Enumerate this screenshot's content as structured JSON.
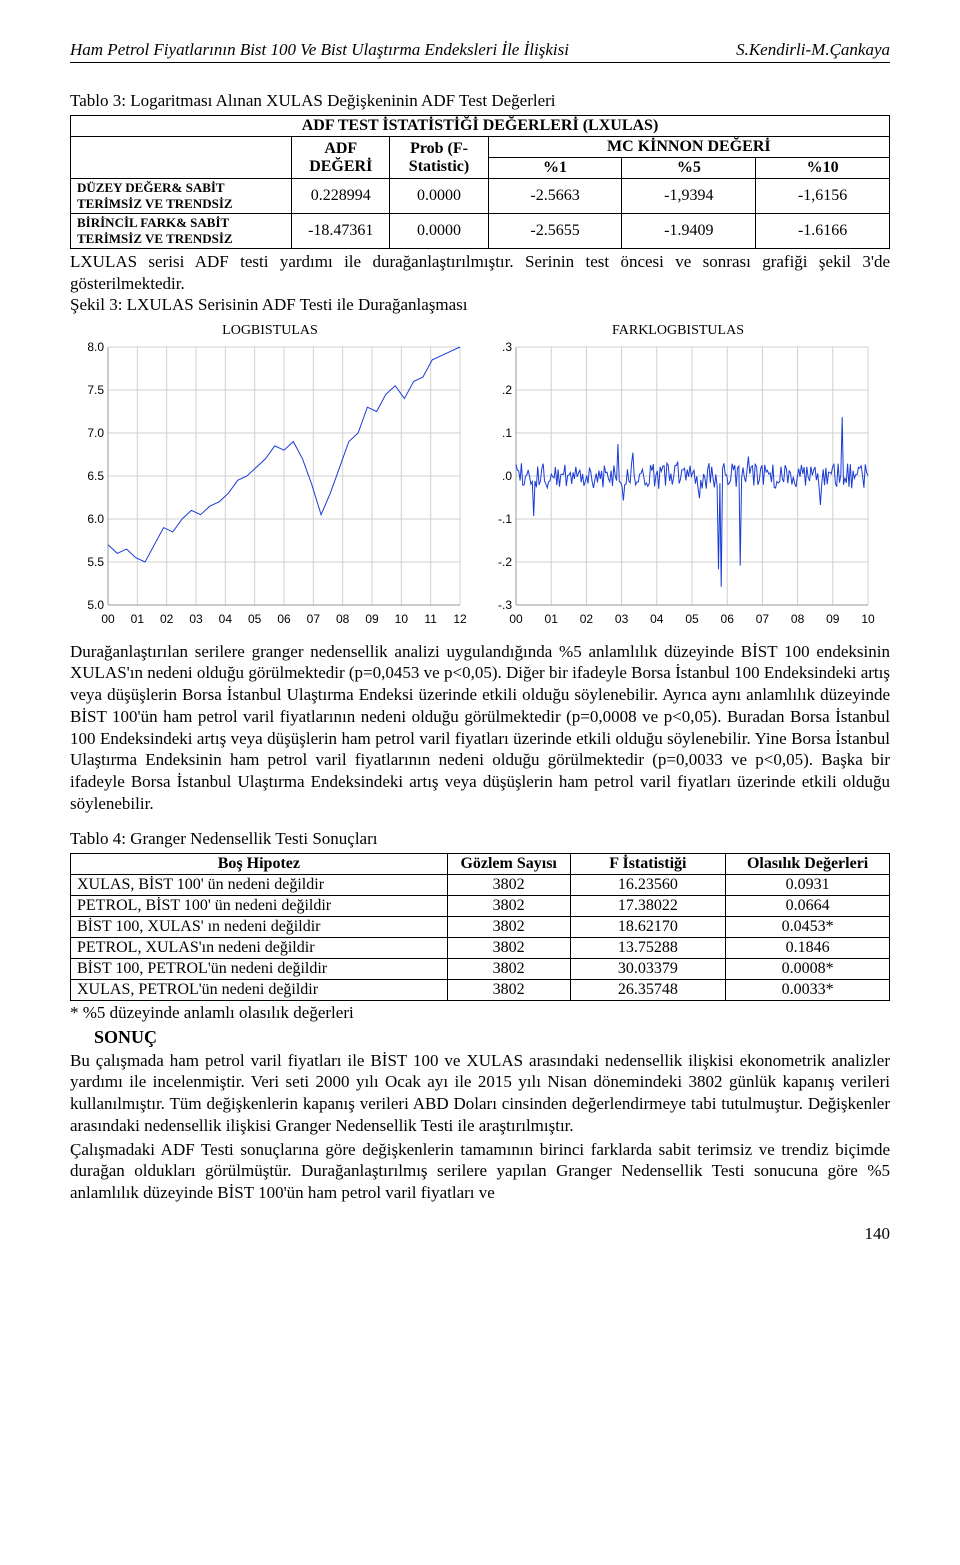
{
  "header": {
    "left": "Ham Petrol Fiyatlarının Bist 100 Ve Bist Ulaştırma Endeksleri İle İlişkisi",
    "right": "S.Kendirli-M.Çankaya"
  },
  "table3": {
    "caption": "Tablo 3: Logaritması Alınan XULAS Değişkeninin ADF Test Değerleri",
    "title_row": "ADF TEST İSTATİSTİĞİ DEĞERLERİ (LXULAS)",
    "col1": "ADF DEĞERİ",
    "col2": "Prob (F-Statistic)",
    "col3": "MC KİNNON DEĞERİ",
    "sub": {
      "a": "%1",
      "b": "%5",
      "c": "%10"
    },
    "rows": [
      {
        "label": "DÜZEY DEĞER& SABİT TERİMSİZ VE TRENDSİZ",
        "adf": "0.228994",
        "prob": "0.0000",
        "m1": "-2.5663",
        "m5": "-1,9394",
        "m10": "-1,6156"
      },
      {
        "label": "BİRİNCİL FARK& SABİT TERİMSİZ VE TRENDSİZ",
        "adf": "-18.47361",
        "prob": "0.0000",
        "m1": "-2.5655",
        "m5": "-1.9409",
        "m10": "-1.6166"
      }
    ]
  },
  "para1": "LXULAS serisi ADF testi yardımı ile durağanlaştırılmıştır. Serinin test öncesi ve sonrası grafiği şekil 3'de gösterilmektedir.",
  "fig3caption": "Şekil 3: LXULAS Serisinin ADF Testi ile Durağanlaşması",
  "chart_left": {
    "title": "LOGBISTULAS",
    "ylim": [
      5.0,
      8.0
    ],
    "ystep": 0.5,
    "xlabels": [
      "00",
      "01",
      "02",
      "03",
      "04",
      "05",
      "06",
      "07",
      "08",
      "09",
      "10",
      "11",
      "12"
    ],
    "colors": {
      "line": "#1a3bd6",
      "grid": "#d0d0d0",
      "axis": "#9a9a9a",
      "bg": "#ffffff"
    },
    "values": [
      5.7,
      5.6,
      5.65,
      5.55,
      5.5,
      5.7,
      5.9,
      5.85,
      6.0,
      6.1,
      6.05,
      6.15,
      6.2,
      6.3,
      6.45,
      6.5,
      6.6,
      6.7,
      6.85,
      6.8,
      6.9,
      6.7,
      6.4,
      6.05,
      6.3,
      6.6,
      6.9,
      7.0,
      7.3,
      7.25,
      7.45,
      7.55,
      7.4,
      7.6,
      7.65,
      7.85,
      7.9,
      7.95,
      8.0
    ]
  },
  "chart_right": {
    "title": "FARKLOGBISTULAS",
    "ylim": [
      -0.3,
      0.3
    ],
    "ystep": 0.1,
    "xlabels": [
      "00",
      "01",
      "02",
      "03",
      "04",
      "05",
      "06",
      "07",
      "08",
      "09",
      "10"
    ],
    "colors": {
      "line": "#1a3bd6",
      "grid": "#d0d0d0",
      "axis": "#9a9a9a",
      "bg": "#ffffff"
    },
    "noise_n": 260
  },
  "para2": "Durağanlaştırılan serilere granger nedensellik analizi uygulandığında %5 anlamlılık düzeyinde BİST 100 endeksinin XULAS'ın nedeni olduğu görülmektedir (p=0,0453 ve p<0,05). Diğer bir ifadeyle Borsa İstanbul 100 Endeksindeki artış veya düşüşlerin Borsa İstanbul Ulaştırma Endeksi üzerinde etkili olduğu söylenebilir. Ayrıca aynı anlamlılık düzeyinde BİST 100'ün ham petrol varil fiyatlarının nedeni olduğu görülmektedir (p=0,0008 ve p<0,05). Buradan Borsa İstanbul 100 Endeksindeki artış veya düşüşlerin ham petrol varil fiyatları üzerinde etkili olduğu söylenebilir. Yine Borsa İstanbul Ulaştırma Endeksinin ham petrol varil fiyatlarının nedeni olduğu görülmektedir (p=0,0033 ve p<0,05). Başka bir ifadeyle Borsa İstanbul Ulaştırma Endeksindeki artış veya düşüşlerin ham petrol varil fiyatları üzerinde etkili olduğu söylenebilir.",
  "table4": {
    "caption": "Tablo 4: Granger Nedensellik Testi Sonuçları",
    "headers": [
      "Boş Hipotez",
      "Gözlem Sayısı",
      "F İstatistiği",
      "Olasılık Değerleri"
    ],
    "rows": [
      [
        "XULAS, BİST 100' ün nedeni değildir",
        "3802",
        "16.23560",
        "0.0931"
      ],
      [
        "PETROL, BİST 100' ün nedeni değildir",
        "3802",
        "17.38022",
        "0.0664"
      ],
      [
        "BİST 100, XULAS' ın nedeni değildir",
        "3802",
        "18.62170",
        "0.0453*"
      ],
      [
        "PETROL, XULAS'ın nedeni değildir",
        "3802",
        "13.75288",
        "0.1846"
      ],
      [
        "BİST 100, PETROL'ün nedeni değildir",
        "3802",
        "30.03379",
        "0.0008*"
      ],
      [
        "XULAS, PETROL'ün nedeni değildir",
        "3802",
        "26.35748",
        "0.0033*"
      ]
    ],
    "footnote": "* %5 düzeyinde anlamlı olasılık değerleri"
  },
  "section": "SONUÇ",
  "para3": "Bu çalışmada ham petrol varil fiyatları ile BİST 100 ve XULAS arasındaki nedensellik ilişkisi ekonometrik analizler yardımı ile incelenmiştir. Veri seti 2000 yılı Ocak ayı ile 2015 yılı Nisan dönemindeki 3802 günlük kapanış verileri kullanılmıştır. Tüm değişkenlerin kapanış verileri ABD Doları cinsinden değerlendirmeye tabi tutulmuştur. Değişkenler arasındaki nedensellik ilişkisi Granger Nedensellik Testi ile araştırılmıştır.",
  "para4": "Çalışmadaki ADF Testi sonuçlarına göre değişkenlerin tamamının birinci farklarda sabit terimsiz ve trendiz biçimde durağan oldukları görülmüştür. Durağanlaştırılmış serilere yapılan Granger Nedensellik Testi sonucuna göre %5 anlamlılık düzeyinde BİST 100'ün ham petrol varil fiyatları ve",
  "pagenum": "140"
}
